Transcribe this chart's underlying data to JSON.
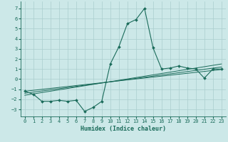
{
  "xlabel": "Humidex (Indice chaleur)",
  "background_color": "#cce8e8",
  "grid_color": "#aacece",
  "line_color": "#1a6b5a",
  "xlim": [
    -0.5,
    23.5
  ],
  "ylim": [
    -3.7,
    7.7
  ],
  "xticks": [
    0,
    1,
    2,
    3,
    4,
    5,
    6,
    7,
    8,
    9,
    10,
    11,
    12,
    13,
    14,
    15,
    16,
    17,
    18,
    19,
    20,
    21,
    22,
    23
  ],
  "yticks": [
    -3,
    -2,
    -1,
    0,
    1,
    2,
    3,
    4,
    5,
    6,
    7
  ],
  "main_x": [
    0,
    1,
    2,
    3,
    4,
    5,
    6,
    7,
    8,
    9,
    10,
    11,
    12,
    13,
    14,
    15,
    16,
    17,
    18,
    19,
    20,
    21,
    22,
    23
  ],
  "main_y": [
    -1.2,
    -1.5,
    -2.2,
    -2.2,
    -2.1,
    -2.2,
    -2.1,
    -3.2,
    -2.8,
    -2.2,
    1.5,
    3.2,
    5.5,
    5.9,
    7.0,
    3.1,
    1.0,
    1.1,
    1.3,
    1.1,
    1.0,
    0.1,
    1.0,
    1.0
  ],
  "line1_x": [
    0,
    23
  ],
  "line1_y": [
    -1.4,
    1.2
  ],
  "line2_x": [
    0,
    23
  ],
  "line2_y": [
    -1.6,
    1.5
  ],
  "line3_x": [
    0,
    23
  ],
  "line3_y": [
    -1.2,
    0.95
  ]
}
